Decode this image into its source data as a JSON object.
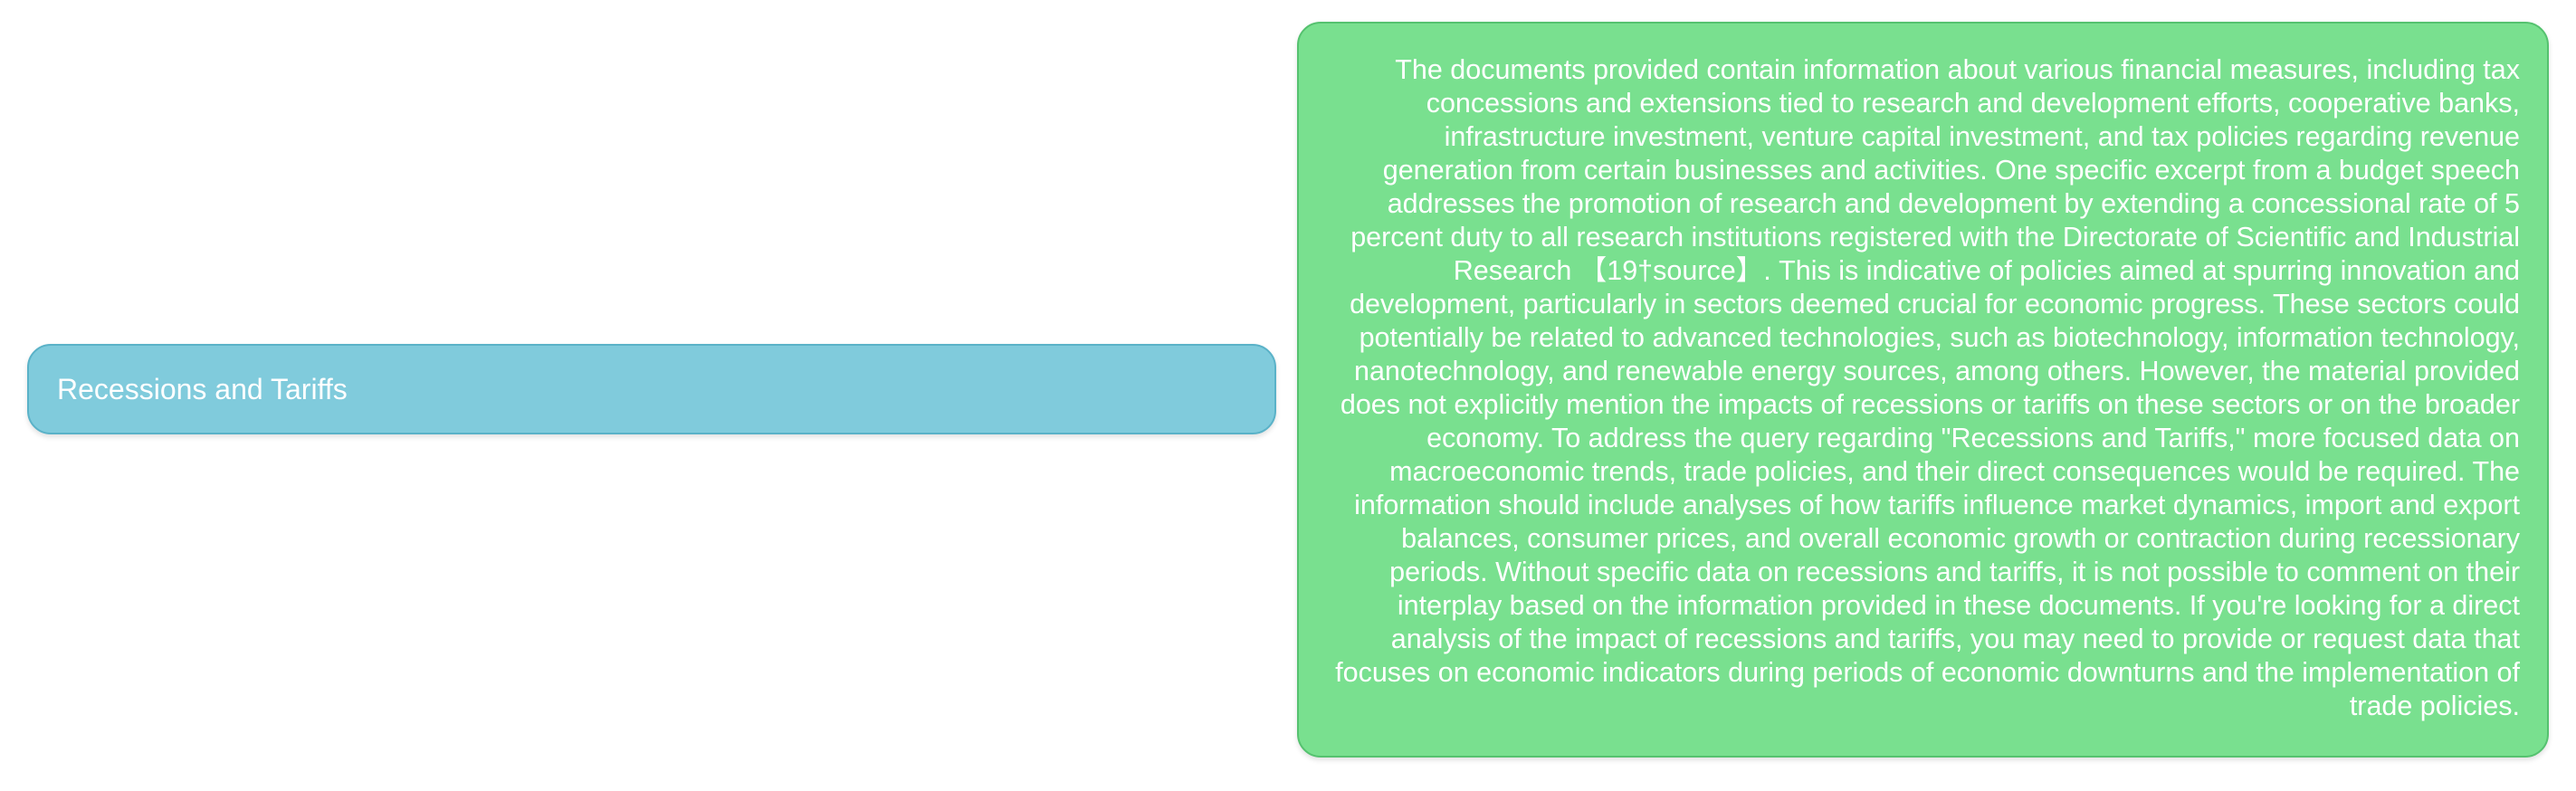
{
  "diagram": {
    "topic_node": {
      "label": "Recessions and Tariffs"
    },
    "answer_node": {
      "text": "The documents provided contain information about various financial measures, including tax concessions and extensions tied to research and development efforts, cooperative banks, infrastructure investment, venture capital investment, and tax policies regarding revenue generation from certain businesses and activities. One specific excerpt from a budget speech addresses the promotion of research and development by extending a concessional rate of 5 percent duty to all research institutions registered with the Directorate of Scientific and Industrial Research 【19†source】. This is indicative of policies aimed at spurring innovation and development, particularly in sectors deemed crucial for economic progress. These sectors could potentially be related to advanced technologies, such as biotechnology, information technology, nanotechnology, and renewable energy sources, among others. However, the material provided does not explicitly mention the impacts of recessions or tariffs on these sectors or on the broader economy. To address the query regarding \"Recessions and Tariffs,\" more focused data on macroeconomic trends, trade policies, and their direct consequences would be required. The information should include analyses of how tariffs influence market dynamics, import and export balances, consumer prices, and overall economic growth or contraction during recessionary periods. Without specific data on recessions and tariffs, it is not possible to comment on their interplay based on the information provided in these documents. If you're looking for a direct analysis of the impact of recessions and tariffs, you may need to provide or request data that focuses on economic indicators during periods of economic downturns and the implementation of trade policies."
    },
    "colors": {
      "topic_fill": "#80cbdc",
      "topic_border": "#5ab2c8",
      "answer_fill": "#79e08f",
      "answer_border": "#55c26f",
      "text": "#ffffff"
    }
  }
}
